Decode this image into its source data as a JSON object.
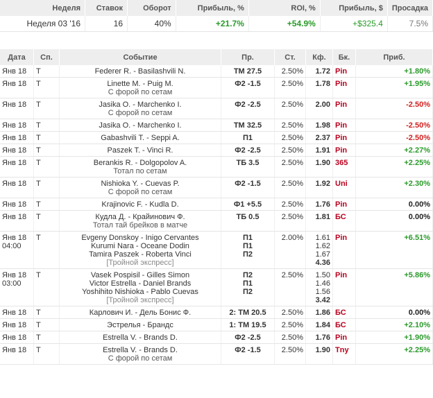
{
  "summary": {
    "headers": [
      "Неделя",
      "Ставок",
      "Оборот",
      "Прибыль, %",
      "ROI, %",
      "Прибыль, $",
      "Просадка"
    ],
    "week": "Неделя 03 '16",
    "bets": "16",
    "turnover": "40%",
    "profit_pct": "+21.7%",
    "roi": "+54.9%",
    "profit_usd": "+$325.4",
    "drawdown": "7.5%"
  },
  "table": {
    "headers": [
      "Дата",
      "Сп.",
      "Событие",
      "Пр.",
      "Ст.",
      "Кф.",
      "Бк.",
      "Приб."
    ],
    "rows": [
      {
        "date": "Янв 18",
        "time": "",
        "sport": "T",
        "events": [
          "Federer R. - Basilashvili N."
        ],
        "sub": "",
        "picks": [
          "ТМ 27.5"
        ],
        "stake": "2.50%",
        "odds": [
          "1.72"
        ],
        "total": "",
        "bk": "Pin",
        "profit": "+1.80%",
        "pc": "grn"
      },
      {
        "date": "Янв 18",
        "time": "",
        "sport": "T",
        "events": [
          "Linette M. - Puig M."
        ],
        "sub": "С форой по сетам",
        "picks": [
          "Ф2 -1.5"
        ],
        "stake": "2.50%",
        "odds": [
          "1.78"
        ],
        "total": "",
        "bk": "Pin",
        "profit": "+1.95%",
        "pc": "grn"
      },
      {
        "date": "Янв 18",
        "time": "",
        "sport": "T",
        "events": [
          "Jasika O. - Marchenko I."
        ],
        "sub": "С форой по сетам",
        "picks": [
          "Ф2 -2.5"
        ],
        "stake": "2.50%",
        "odds": [
          "2.00"
        ],
        "total": "",
        "bk": "Pin",
        "profit": "-2.50%",
        "pc": "red"
      },
      {
        "date": "Янв 18",
        "time": "",
        "sport": "T",
        "events": [
          "Jasika O. - Marchenko I."
        ],
        "sub": "",
        "picks": [
          "ТМ 32.5"
        ],
        "stake": "2.50%",
        "odds": [
          "1.98"
        ],
        "total": "",
        "bk": "Pin",
        "profit": "-2.50%",
        "pc": "red"
      },
      {
        "date": "Янв 18",
        "time": "",
        "sport": "T",
        "events": [
          "Gabashvili T. - Seppi A."
        ],
        "sub": "",
        "picks": [
          "П1"
        ],
        "stake": "2.50%",
        "odds": [
          "2.37"
        ],
        "total": "",
        "bk": "Pin",
        "profit": "-2.50%",
        "pc": "red"
      },
      {
        "date": "Янв 18",
        "time": "",
        "sport": "T",
        "events": [
          "Paszek T. - Vinci R."
        ],
        "sub": "",
        "picks": [
          "Ф2 -2.5"
        ],
        "stake": "2.50%",
        "odds": [
          "1.91"
        ],
        "total": "",
        "bk": "Pin",
        "profit": "+2.27%",
        "pc": "grn"
      },
      {
        "date": "Янв 18",
        "time": "",
        "sport": "T",
        "events": [
          "Berankis R. - Dolgopolov A."
        ],
        "sub": "Тотал по сетам",
        "picks": [
          "ТБ 3.5"
        ],
        "stake": "2.50%",
        "odds": [
          "1.90"
        ],
        "total": "",
        "bk": "365",
        "profit": "+2.25%",
        "pc": "grn"
      },
      {
        "date": "Янв 18",
        "time": "",
        "sport": "T",
        "events": [
          "Nishioka Y. - Cuevas P."
        ],
        "sub": "С форой по сетам",
        "picks": [
          "Ф2 -1.5"
        ],
        "stake": "2.50%",
        "odds": [
          "1.92"
        ],
        "total": "",
        "bk": "Uni",
        "profit": "+2.30%",
        "pc": "grn"
      },
      {
        "date": "Янв 18",
        "time": "",
        "sport": "T",
        "events": [
          "Krajinovic F. - Kudla D."
        ],
        "sub": "",
        "picks": [
          "Ф1 +5.5"
        ],
        "stake": "2.50%",
        "odds": [
          "1.76"
        ],
        "total": "",
        "bk": "Pin",
        "profit": "0.00%",
        "pc": "blk"
      },
      {
        "date": "Янв 18",
        "time": "",
        "sport": "T",
        "events": [
          "Кудла Д. - Крайинович Ф."
        ],
        "sub": "Тотал тай брейков в матче",
        "picks": [
          "ТБ 0.5"
        ],
        "stake": "2.50%",
        "odds": [
          "1.81"
        ],
        "total": "",
        "bk": "БС",
        "profit": "0.00%",
        "pc": "blk"
      },
      {
        "date": "Янв 18",
        "time": "04:00",
        "sport": "T",
        "events": [
          "Evgeny Donskoy - Inigo Cervantes",
          "Kurumi Nara - Oceane Dodin",
          "Tamira Paszek - Roberta Vinci"
        ],
        "sub": "[Тройной экспресс]",
        "picks": [
          "П1",
          "П1",
          "П2"
        ],
        "stake": "2.00%",
        "odds": [
          "1.61",
          "1.62",
          "1.67"
        ],
        "total": "4.36",
        "bk": "Pin",
        "profit": "+6.51%",
        "pc": "grn"
      },
      {
        "date": "Янв 18",
        "time": "03:00",
        "sport": "T",
        "events": [
          "Vasek Pospisil - Gilles Simon",
          "Victor Estrella - Daniel Brands",
          "Yoshihito Nishioka - Pablo Cuevas"
        ],
        "sub": "[Тройной экспресс]",
        "picks": [
          "П2",
          "П1",
          "П2"
        ],
        "stake": "2.50%",
        "odds": [
          "1.50",
          "1.46",
          "1.56"
        ],
        "total": "3.42",
        "bk": "Pin",
        "profit": "+5.86%",
        "pc": "grn"
      },
      {
        "date": "Янв 18",
        "time": "",
        "sport": "T",
        "events": [
          "Карлович И. - Дель Бонис Ф."
        ],
        "sub": "",
        "picks": [
          "2: ТМ 20.5"
        ],
        "stake": "2.50%",
        "odds": [
          "1.86"
        ],
        "total": "",
        "bk": "БС",
        "profit": "0.00%",
        "pc": "blk"
      },
      {
        "date": "Янв 18",
        "time": "",
        "sport": "T",
        "events": [
          "Эстрелья - Брандс"
        ],
        "sub": "",
        "picks": [
          "1: ТМ 19.5"
        ],
        "stake": "2.50%",
        "odds": [
          "1.84"
        ],
        "total": "",
        "bk": "БС",
        "profit": "+2.10%",
        "pc": "grn"
      },
      {
        "date": "Янв 18",
        "time": "",
        "sport": "T",
        "events": [
          "Estrella V. - Brands D."
        ],
        "sub": "",
        "picks": [
          "Ф2 -2.5"
        ],
        "stake": "2.50%",
        "odds": [
          "1.76"
        ],
        "total": "",
        "bk": "Pin",
        "profit": "+1.90%",
        "pc": "grn"
      },
      {
        "date": "Янв 18",
        "time": "",
        "sport": "T",
        "events": [
          "Estrella V. - Brands D."
        ],
        "sub": "С форой по сетам",
        "picks": [
          "Ф2 -1.5"
        ],
        "stake": "2.50%",
        "odds": [
          "1.90"
        ],
        "total": "",
        "bk": "Tny",
        "profit": "+2.25%",
        "pc": "grn"
      }
    ]
  }
}
